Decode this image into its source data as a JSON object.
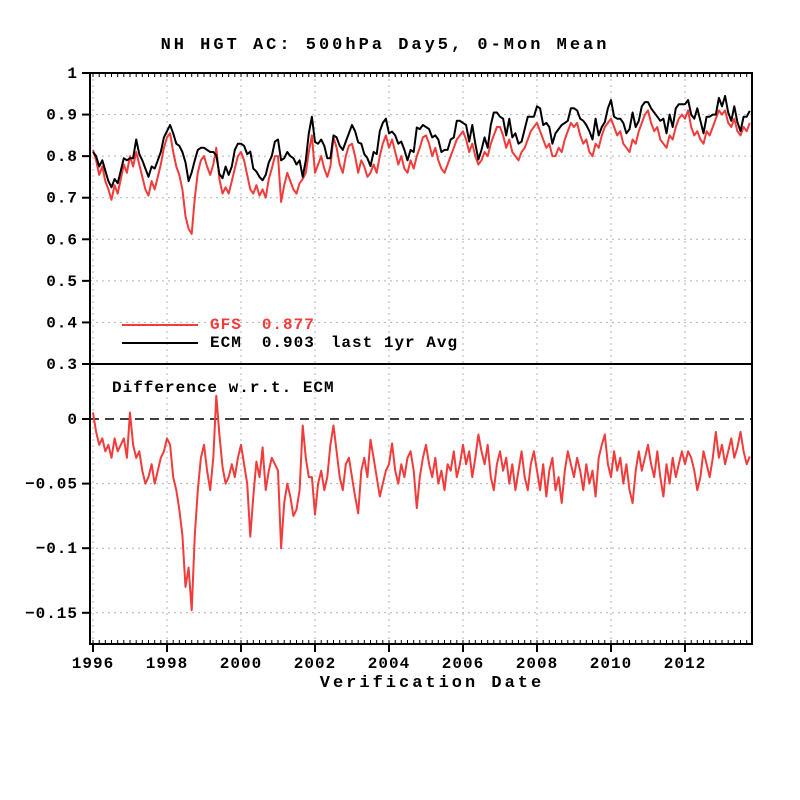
{
  "title": "NH HGT AC: 500hPa Day5, 0-Mon Mean",
  "legend": {
    "gfs": {
      "label": "GFS",
      "score": "0.877"
    },
    "ecm": {
      "label": "ECM",
      "score": "0.903",
      "note": "last 1yr Avg"
    }
  },
  "bottom_panel_label": "Difference w.r.t. ECM",
  "x_axis": {
    "label": "Verification Date",
    "tick_years": [
      1996,
      1998,
      2000,
      2002,
      2004,
      2006,
      2008,
      2010,
      2012
    ]
  },
  "colors": {
    "gfs": "#f23b3b",
    "ecm": "#000000",
    "grid": "#b3b3b3",
    "background": "#ffffff"
  },
  "chart_data": {
    "type": "line",
    "x": {
      "start": "1996-01",
      "step": "1 month",
      "count": 214,
      "range_years": [
        1996.0,
        2013.8
      ]
    },
    "top_panel": {
      "ylim": [
        0.3,
        1.0
      ],
      "y_ticks": [
        {
          "label": "1",
          "value": 1.0
        },
        {
          "label": "0.9",
          "value": 0.9
        },
        {
          "label": "0.8",
          "value": 0.8
        },
        {
          "label": "0.7",
          "value": 0.7
        },
        {
          "label": "0.6",
          "value": 0.6
        },
        {
          "label": "0.5",
          "value": 0.5
        },
        {
          "label": "0.4",
          "value": 0.4
        },
        {
          "label": "0.3",
          "value": 0.3
        }
      ]
    },
    "bottom_panel": {
      "ylim": [
        -0.175,
        0.043
      ],
      "y_ticks": [
        {
          "label": "0",
          "value": 0
        },
        {
          "label": "-0.05",
          "value": -0.05
        },
        {
          "label": "-0.1",
          "value": -0.1
        },
        {
          "label": "-0.15",
          "value": -0.15
        }
      ],
      "zero_line": true,
      "definition": "GFS minus ECM"
    },
    "series": [
      {
        "name": "GFS",
        "color": "#f23b3b",
        "values": [
          0.815,
          0.79,
          0.755,
          0.775,
          0.74,
          0.72,
          0.695,
          0.73,
          0.71,
          0.745,
          0.78,
          0.76,
          0.8,
          0.775,
          0.81,
          0.78,
          0.75,
          0.72,
          0.705,
          0.74,
          0.72,
          0.75,
          0.78,
          0.82,
          0.845,
          0.855,
          0.81,
          0.775,
          0.755,
          0.72,
          0.655,
          0.625,
          0.613,
          0.7,
          0.76,
          0.79,
          0.8,
          0.775,
          0.755,
          0.78,
          0.82,
          0.745,
          0.71,
          0.725,
          0.71,
          0.74,
          0.77,
          0.8,
          0.81,
          0.79,
          0.755,
          0.72,
          0.71,
          0.73,
          0.705,
          0.72,
          0.7,
          0.745,
          0.77,
          0.8,
          0.8,
          0.69,
          0.73,
          0.76,
          0.74,
          0.72,
          0.71,
          0.735,
          0.745,
          0.76,
          0.81,
          0.85,
          0.76,
          0.78,
          0.8,
          0.77,
          0.75,
          0.775,
          0.845,
          0.82,
          0.78,
          0.76,
          0.8,
          0.825,
          0.83,
          0.8,
          0.76,
          0.79,
          0.775,
          0.75,
          0.76,
          0.78,
          0.76,
          0.8,
          0.83,
          0.85,
          0.82,
          0.84,
          0.81,
          0.78,
          0.8,
          0.77,
          0.76,
          0.79,
          0.77,
          0.8,
          0.82,
          0.845,
          0.85,
          0.83,
          0.8,
          0.82,
          0.79,
          0.77,
          0.76,
          0.78,
          0.8,
          0.82,
          0.84,
          0.85,
          0.86,
          0.84,
          0.81,
          0.83,
          0.8,
          0.78,
          0.79,
          0.81,
          0.8,
          0.83,
          0.85,
          0.87,
          0.87,
          0.85,
          0.82,
          0.84,
          0.81,
          0.8,
          0.79,
          0.81,
          0.82,
          0.84,
          0.86,
          0.87,
          0.88,
          0.86,
          0.84,
          0.82,
          0.83,
          0.8,
          0.8,
          0.82,
          0.81,
          0.84,
          0.86,
          0.88,
          0.87,
          0.88,
          0.85,
          0.83,
          0.84,
          0.81,
          0.8,
          0.83,
          0.82,
          0.85,
          0.87,
          0.88,
          0.89,
          0.87,
          0.85,
          0.86,
          0.83,
          0.82,
          0.81,
          0.84,
          0.83,
          0.86,
          0.88,
          0.9,
          0.91,
          0.88,
          0.86,
          0.87,
          0.84,
          0.83,
          0.82,
          0.85,
          0.84,
          0.87,
          0.89,
          0.9,
          0.89,
          0.91,
          0.87,
          0.85,
          0.86,
          0.84,
          0.83,
          0.86,
          0.85,
          0.87,
          0.89,
          0.91,
          0.9,
          0.91,
          0.88,
          0.87,
          0.89,
          0.86,
          0.85,
          0.87,
          0.86,
          0.88
        ]
      },
      {
        "name": "ECM",
        "color": "#000000",
        "values": [
          0.81,
          0.8,
          0.775,
          0.79,
          0.765,
          0.74,
          0.725,
          0.745,
          0.735,
          0.765,
          0.795,
          0.79,
          0.795,
          0.795,
          0.84,
          0.805,
          0.79,
          0.77,
          0.75,
          0.775,
          0.77,
          0.79,
          0.81,
          0.845,
          0.86,
          0.875,
          0.855,
          0.83,
          0.825,
          0.81,
          0.785,
          0.74,
          0.761,
          0.79,
          0.815,
          0.82,
          0.82,
          0.815,
          0.81,
          0.81,
          0.802,
          0.757,
          0.747,
          0.775,
          0.755,
          0.775,
          0.815,
          0.83,
          0.83,
          0.825,
          0.805,
          0.811,
          0.77,
          0.763,
          0.75,
          0.742,
          0.755,
          0.785,
          0.8,
          0.835,
          0.84,
          0.79,
          0.795,
          0.81,
          0.8,
          0.795,
          0.78,
          0.79,
          0.75,
          0.79,
          0.855,
          0.895,
          0.834,
          0.83,
          0.84,
          0.825,
          0.795,
          0.795,
          0.85,
          0.845,
          0.825,
          0.815,
          0.835,
          0.855,
          0.875,
          0.86,
          0.833,
          0.83,
          0.805,
          0.795,
          0.776,
          0.81,
          0.805,
          0.86,
          0.88,
          0.89,
          0.855,
          0.859,
          0.85,
          0.83,
          0.835,
          0.815,
          0.79,
          0.815,
          0.81,
          0.869,
          0.865,
          0.875,
          0.87,
          0.865,
          0.845,
          0.85,
          0.84,
          0.81,
          0.815,
          0.815,
          0.84,
          0.845,
          0.885,
          0.885,
          0.88,
          0.875,
          0.835,
          0.875,
          0.83,
          0.792,
          0.815,
          0.845,
          0.82,
          0.875,
          0.905,
          0.905,
          0.895,
          0.89,
          0.85,
          0.89,
          0.845,
          0.855,
          0.83,
          0.835,
          0.865,
          0.895,
          0.895,
          0.895,
          0.92,
          0.915,
          0.875,
          0.88,
          0.87,
          0.83,
          0.855,
          0.865,
          0.875,
          0.88,
          0.885,
          0.915,
          0.915,
          0.91,
          0.89,
          0.885,
          0.875,
          0.86,
          0.84,
          0.89,
          0.85,
          0.87,
          0.882,
          0.915,
          0.935,
          0.895,
          0.89,
          0.89,
          0.88,
          0.855,
          0.865,
          0.905,
          0.87,
          0.885,
          0.92,
          0.93,
          0.93,
          0.915,
          0.905,
          0.895,
          0.885,
          0.89,
          0.855,
          0.9,
          0.87,
          0.915,
          0.925,
          0.925,
          0.925,
          0.935,
          0.9,
          0.89,
          0.915,
          0.885,
          0.855,
          0.895,
          0.895,
          0.9,
          0.9,
          0.94,
          0.92,
          0.945,
          0.905,
          0.885,
          0.92,
          0.882,
          0.86,
          0.895,
          0.895,
          0.909
        ]
      }
    ]
  }
}
